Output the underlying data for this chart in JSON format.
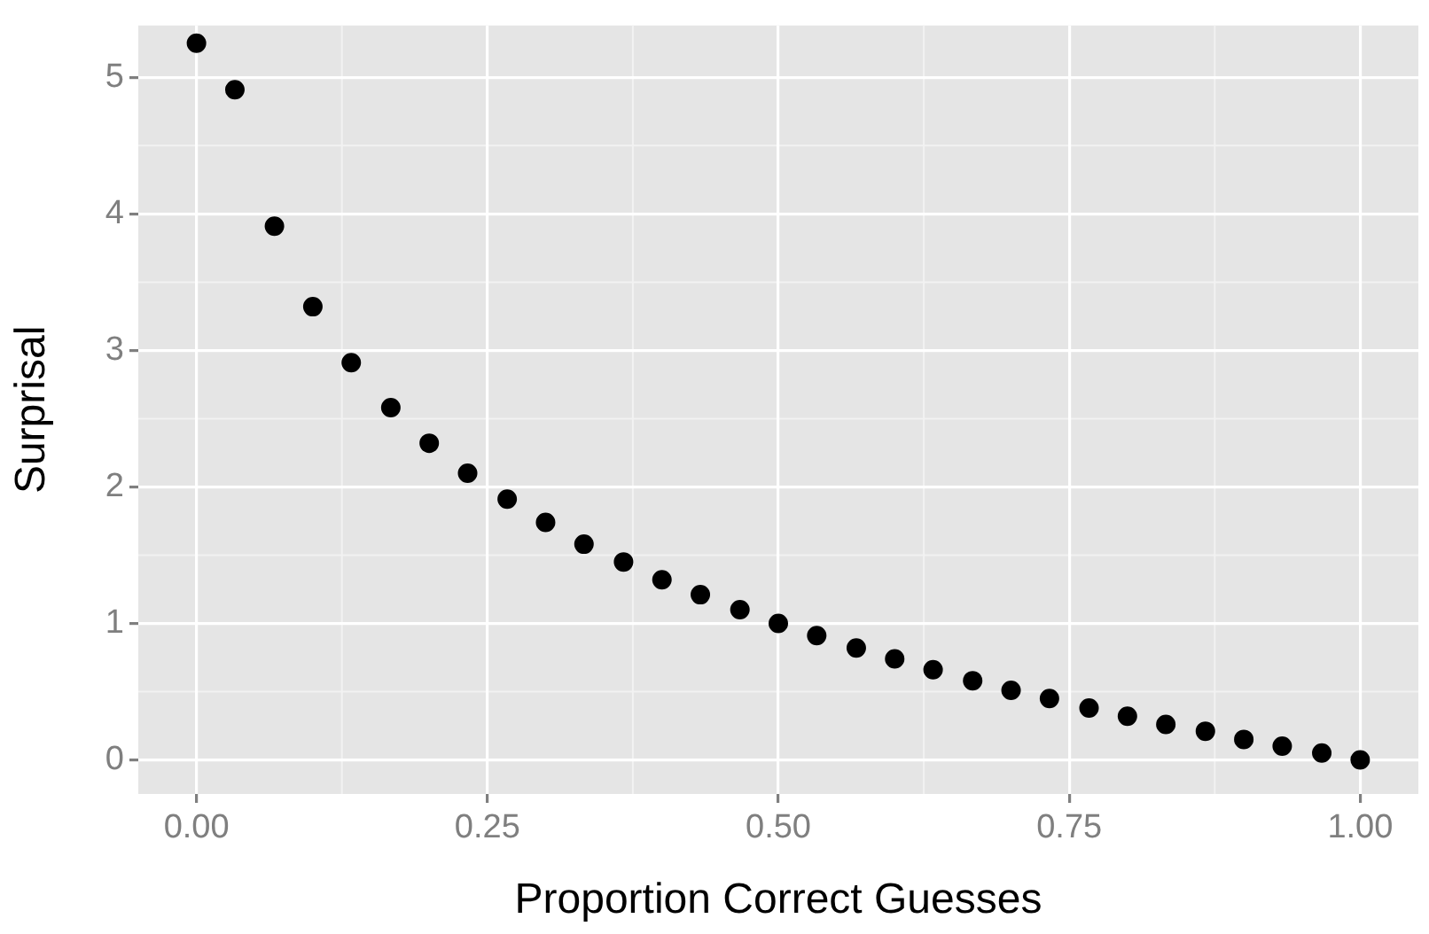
{
  "chart_data": {
    "type": "scatter",
    "xlabel": "Proportion Correct Guesses",
    "ylabel": "Surprisal",
    "x": [
      0,
      0.033,
      0.067,
      0.1,
      0.133,
      0.167,
      0.2,
      0.233,
      0.267,
      0.3,
      0.333,
      0.367,
      0.4,
      0.433,
      0.467,
      0.5,
      0.533,
      0.567,
      0.6,
      0.633,
      0.667,
      0.7,
      0.733,
      0.767,
      0.8,
      0.833,
      0.867,
      0.9,
      0.933,
      0.967,
      1
    ],
    "values": [
      5.25,
      4.91,
      3.91,
      3.32,
      2.91,
      2.58,
      2.32,
      2.1,
      1.91,
      1.74,
      1.58,
      1.45,
      1.32,
      1.21,
      1.1,
      1.0,
      0.91,
      0.82,
      0.74,
      0.66,
      0.58,
      0.51,
      0.45,
      0.38,
      0.32,
      0.26,
      0.21,
      0.15,
      0.1,
      0.05,
      0
    ],
    "color": "#000000",
    "marker": "circle",
    "grid": true,
    "legend": false,
    "xlim": [
      -0.05,
      1.05
    ],
    "xticks": [
      {
        "value": 0,
        "label": "0.00"
      },
      {
        "value": 0.25,
        "label": "0.25"
      },
      {
        "value": 0.5,
        "label": "0.50"
      },
      {
        "value": 0.75,
        "label": "0.75"
      },
      {
        "value": 1,
        "label": "1.00"
      }
    ],
    "ylim": [
      -0.25,
      5.38
    ],
    "yticks": [
      0,
      1,
      2,
      3,
      4,
      5
    ]
  }
}
